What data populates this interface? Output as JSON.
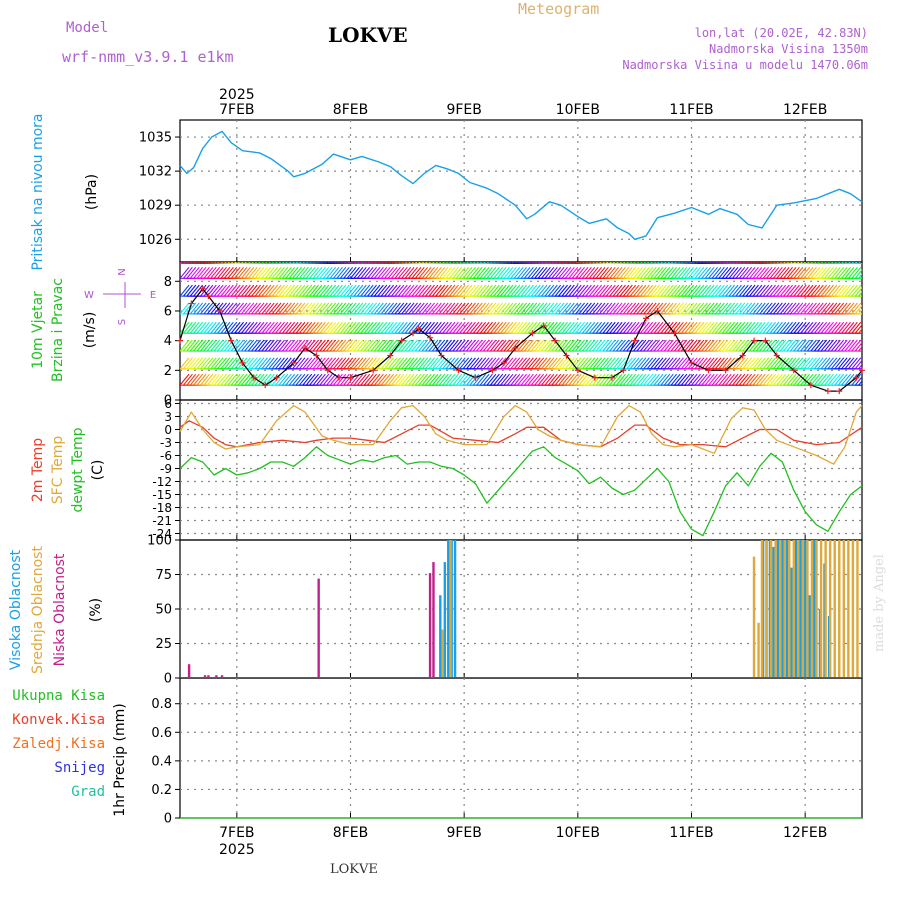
{
  "header": {
    "model_label": "Model",
    "model_name": "wrf-nmm_v3.9.1 e1km",
    "station": "LOKVE",
    "product": "Meteogram",
    "lonlat": "lon,lat (20.02E, 42.83N)",
    "elevation": "Nadmorska Visina 1350m",
    "model_elevation": "Nadmorska Visina u modelu 1470.06m",
    "footer_station": "LOKVE",
    "credit": "made by Angel"
  },
  "colors": {
    "pressure": "#1aa0e8",
    "temp2m": "#e8402a",
    "sfc_temp": "#e0a838",
    "dewpoint": "#22c022",
    "high_cloud": "#1aa0e8",
    "mid_cloud": "#e0a838",
    "low_cloud": "#c0208c",
    "total_precip": "#22c022",
    "conv_precip": "#e8402a",
    "frozen_precip": "#f07020",
    "snow": "#3030e0",
    "hail": "#20c0a0",
    "model_label": "#b060d0",
    "grid": "#888888"
  },
  "time_axis": {
    "year": "2025",
    "days": [
      "7FEB",
      "8FEB",
      "9FEB",
      "10FEB",
      "11FEB",
      "12FEB"
    ],
    "start_day": 6.5,
    "end_day": 12.5,
    "day_ticks": [
      6.5,
      7.0,
      8.0,
      9.0,
      10.0,
      11.0,
      12.0,
      12.5
    ]
  },
  "chart_data": [
    {
      "type": "line",
      "panel": "pressure",
      "ylabel_lines": [
        "Pritisak na nivou mora",
        "(hPa)"
      ],
      "ylim": [
        1024.0,
        1036.5
      ],
      "yticks": [
        1026,
        1029,
        1032,
        1035
      ],
      "grid": true,
      "series": [
        {
          "color": "#1aa0e8",
          "x": [
            6.5,
            6.56,
            6.62,
            6.7,
            6.78,
            6.87,
            6.95,
            7.05,
            7.2,
            7.3,
            7.45,
            7.5,
            7.6,
            7.75,
            7.85,
            8.0,
            8.1,
            8.25,
            8.35,
            8.45,
            8.55,
            8.65,
            8.75,
            8.85,
            8.95,
            9.05,
            9.2,
            9.3,
            9.45,
            9.55,
            9.62,
            9.75,
            9.85,
            10.0,
            10.1,
            10.25,
            10.35,
            10.45,
            10.5,
            10.6,
            10.7,
            10.85,
            11.0,
            11.15,
            11.25,
            11.4,
            11.5,
            11.62,
            11.75,
            11.9,
            12.1,
            12.3,
            12.4,
            12.5
          ],
          "values": [
            1032.5,
            1031.8,
            1032.3,
            1034.0,
            1035.0,
            1035.5,
            1034.5,
            1033.8,
            1033.6,
            1033.1,
            1032.0,
            1031.5,
            1031.8,
            1032.6,
            1033.5,
            1033.0,
            1033.3,
            1032.8,
            1032.4,
            1031.6,
            1030.9,
            1031.8,
            1032.5,
            1032.2,
            1031.8,
            1031.0,
            1030.5,
            1030.0,
            1029.0,
            1027.8,
            1028.2,
            1029.3,
            1029.0,
            1028.0,
            1027.4,
            1027.8,
            1027.0,
            1026.5,
            1026.0,
            1026.3,
            1027.9,
            1028.3,
            1028.8,
            1028.2,
            1028.7,
            1028.2,
            1027.3,
            1027.0,
            1029.0,
            1029.2,
            1029.6,
            1030.4,
            1030.0,
            1029.3
          ]
        }
      ]
    },
    {
      "type": "line",
      "panel": "wind",
      "ylabel_lines": [
        "10m Vjetar",
        "Brzina i Pravac",
        "(m/s)"
      ],
      "compass_labels": [
        "N",
        "W",
        "E",
        "S"
      ],
      "ylim": [
        0,
        9.3
      ],
      "yticks": [
        0,
        2,
        4,
        6,
        8
      ],
      "grid": true,
      "series": [
        {
          "name": "wind speed",
          "color": "#000000",
          "x": [
            6.5,
            6.6,
            6.7,
            6.75,
            6.85,
            6.95,
            7.05,
            7.15,
            7.25,
            7.35,
            7.5,
            7.6,
            7.7,
            7.8,
            7.9,
            8.0,
            8.2,
            8.35,
            8.45,
            8.55,
            8.6,
            8.7,
            8.8,
            8.95,
            9.1,
            9.25,
            9.35,
            9.45,
            9.6,
            9.7,
            9.8,
            9.9,
            10.0,
            10.15,
            10.3,
            10.4,
            10.5,
            10.6,
            10.7,
            10.85,
            11.0,
            11.15,
            11.3,
            11.45,
            11.55,
            11.65,
            11.75,
            11.9,
            12.05,
            12.2,
            12.3,
            12.45,
            12.5
          ],
          "values": [
            4.0,
            6.5,
            7.5,
            7.0,
            6.0,
            4.0,
            2.5,
            1.5,
            1.0,
            1.5,
            2.5,
            3.5,
            3.0,
            2.0,
            1.5,
            1.5,
            2.0,
            3.0,
            4.0,
            4.5,
            4.8,
            4.2,
            3.0,
            2.0,
            1.5,
            2.0,
            2.5,
            3.5,
            4.5,
            5.0,
            4.0,
            3.0,
            2.0,
            1.5,
            1.5,
            2.0,
            4.0,
            5.5,
            6.0,
            4.5,
            2.5,
            2.0,
            2.0,
            3.0,
            4.0,
            4.0,
            3.0,
            2.0,
            1.0,
            0.6,
            0.6,
            1.5,
            2.0
          ]
        }
      ]
    },
    {
      "type": "line",
      "panel": "temperature",
      "ylabel_lines": [
        "2m Temp",
        "SFC Temp",
        "dewpt Temp",
        "(C)"
      ],
      "ylim": [
        -25.5,
        6.8
      ],
      "yticks": [
        6,
        3,
        0,
        -3,
        -6,
        -9,
        -12,
        -15,
        -18,
        -21,
        -24
      ],
      "grid": true,
      "series": [
        {
          "name": "2m Temp",
          "color": "#e8402a",
          "x": [
            6.5,
            6.58,
            6.7,
            6.8,
            6.9,
            7.0,
            7.2,
            7.4,
            7.6,
            7.7,
            7.85,
            8.0,
            8.15,
            8.3,
            8.45,
            8.6,
            8.7,
            8.9,
            9.1,
            9.3,
            9.45,
            9.55,
            9.7,
            9.85,
            10.0,
            10.2,
            10.35,
            10.5,
            10.6,
            10.75,
            10.9,
            11.1,
            11.3,
            11.45,
            11.6,
            11.75,
            11.9,
            12.1,
            12.3,
            12.5
          ],
          "values": [
            0.5,
            2.0,
            0.5,
            -2.0,
            -3.5,
            -4.0,
            -3.0,
            -2.5,
            -3.0,
            -2.5,
            -2.0,
            -2.0,
            -2.5,
            -3.0,
            -1.0,
            1.0,
            1.0,
            -2.0,
            -2.5,
            -3.0,
            -1.0,
            0.5,
            0.5,
            -2.5,
            -3.5,
            -4.0,
            -2.0,
            1.0,
            1.0,
            -2.0,
            -3.5,
            -3.5,
            -4.0,
            -2.0,
            0.0,
            0.0,
            -2.5,
            -3.5,
            -3.0,
            0.5
          ]
        },
        {
          "name": "SFC Temp",
          "color": "#e0a838",
          "x": [
            6.5,
            6.6,
            6.7,
            6.8,
            6.9,
            7.0,
            7.2,
            7.35,
            7.5,
            7.6,
            7.75,
            7.85,
            8.0,
            8.2,
            8.35,
            8.45,
            8.55,
            8.65,
            8.75,
            8.85,
            9.0,
            9.2,
            9.35,
            9.45,
            9.55,
            9.65,
            9.75,
            9.85,
            10.0,
            10.2,
            10.35,
            10.45,
            10.55,
            10.65,
            10.75,
            10.85,
            11.0,
            11.2,
            11.35,
            11.45,
            11.55,
            11.65,
            11.75,
            11.9,
            12.1,
            12.25,
            12.35,
            12.45,
            12.5
          ],
          "values": [
            -0.5,
            4.0,
            0.0,
            -3.0,
            -4.5,
            -4.0,
            -3.5,
            2.0,
            5.5,
            4.0,
            -1.5,
            -2.5,
            -3.5,
            -3.5,
            2.0,
            5.0,
            5.5,
            3.0,
            -1.0,
            -2.5,
            -3.5,
            -3.5,
            3.0,
            5.5,
            4.0,
            0.0,
            -1.5,
            -2.5,
            -3.5,
            -4.0,
            3.0,
            5.5,
            4.0,
            -1.0,
            -3.5,
            -4.0,
            -3.5,
            -5.5,
            2.5,
            5.0,
            4.5,
            0.0,
            -2.5,
            -4.0,
            -6.0,
            -8.0,
            -4.0,
            4.0,
            5.5
          ]
        },
        {
          "name": "dewpt Temp",
          "color": "#22c022",
          "x": [
            6.5,
            6.6,
            6.7,
            6.8,
            6.9,
            7.0,
            7.1,
            7.2,
            7.3,
            7.4,
            7.5,
            7.6,
            7.7,
            7.8,
            7.9,
            8.0,
            8.1,
            8.2,
            8.3,
            8.4,
            8.5,
            8.6,
            8.7,
            8.8,
            8.9,
            9.0,
            9.1,
            9.2,
            9.3,
            9.4,
            9.5,
            9.6,
            9.7,
            9.8,
            9.9,
            10.0,
            10.1,
            10.2,
            10.3,
            10.4,
            10.5,
            10.6,
            10.7,
            10.8,
            10.9,
            11.0,
            11.1,
            11.2,
            11.3,
            11.4,
            11.5,
            11.6,
            11.7,
            11.8,
            11.9,
            12.0,
            12.1,
            12.2,
            12.3,
            12.4,
            12.5
          ],
          "values": [
            -9.0,
            -6.5,
            -7.5,
            -10.5,
            -9.0,
            -10.5,
            -10.0,
            -9.0,
            -7.5,
            -7.5,
            -8.5,
            -6.5,
            -4.0,
            -6.0,
            -7.0,
            -8.0,
            -7.0,
            -7.5,
            -6.5,
            -6.0,
            -8.0,
            -7.5,
            -7.5,
            -8.5,
            -9.0,
            -10.5,
            -12.5,
            -17.0,
            -14.0,
            -11.0,
            -8.0,
            -5.0,
            -4.0,
            -6.5,
            -8.0,
            -9.5,
            -12.5,
            -11.0,
            -13.5,
            -15.0,
            -14.0,
            -11.5,
            -9.0,
            -12.0,
            -19.0,
            -23.0,
            -24.5,
            -19.0,
            -13.0,
            -10.0,
            -13.0,
            -8.5,
            -5.5,
            -7.5,
            -14.0,
            -19.0,
            -22.0,
            -23.5,
            -19.0,
            -15.0,
            -13.0
          ]
        }
      ]
    },
    {
      "type": "bar",
      "panel": "cloud",
      "ylabel_lines": [
        "Visoka Oblacnost",
        "Srednja Oblacnost",
        "Niska Oblacnost",
        "(%)"
      ],
      "ylim": [
        0,
        100
      ],
      "yticks": [
        0,
        25,
        50,
        75,
        100
      ],
      "grid": true,
      "series": [
        {
          "name": "Visoka Oblacnost",
          "color": "#1aa0e8",
          "x": [
            8.79,
            8.81,
            8.83,
            8.86,
            8.89,
            8.92,
            11.63,
            11.66,
            11.69,
            11.72,
            11.76,
            11.8,
            11.84,
            11.88,
            11.92,
            11.96,
            12.0,
            12.04,
            12.08,
            12.13,
            12.17,
            12.21
          ],
          "values": [
            60,
            35,
            84,
            100,
            100,
            100,
            100,
            100,
            100,
            95,
            100,
            100,
            100,
            80,
            100,
            100,
            100,
            60,
            100,
            50,
            83,
            45
          ]
        },
        {
          "name": "Srednja Oblacnost",
          "color": "#e0a838",
          "x": [
            8.81,
            8.88,
            11.55,
            11.59,
            11.62,
            11.66,
            11.7,
            11.74,
            11.78,
            11.82,
            11.86,
            11.9,
            11.94,
            11.98,
            12.02,
            12.06,
            12.1,
            12.14,
            12.18,
            12.22,
            12.26,
            12.3,
            12.34,
            12.38,
            12.42,
            12.46
          ],
          "values": [
            35,
            100,
            88,
            40,
            100,
            100,
            100,
            100,
            100,
            100,
            100,
            100,
            100,
            100,
            100,
            100,
            100,
            100,
            100,
            100,
            100,
            100,
            100,
            100,
            100,
            100
          ]
        },
        {
          "name": "Niska Oblacnost",
          "color": "#c0208c",
          "x": [
            6.58,
            6.72,
            6.75,
            6.82,
            6.87,
            7.72,
            8.7,
            8.73
          ],
          "values": [
            10,
            2,
            2,
            2,
            2,
            72,
            76,
            84
          ]
        }
      ]
    },
    {
      "type": "line",
      "panel": "precipitation",
      "ylabel_lines": [
        "1hr Precip (mm)"
      ],
      "legend": [
        "Ukupna Kisa",
        "Konvek.Kisa",
        "Zaledj.Kisa",
        "Snijeg",
        "Grad"
      ],
      "ylim": [
        0,
        0.98
      ],
      "yticks": [
        0,
        0.2,
        0.4,
        0.6,
        0.8
      ],
      "grid": true,
      "series": [
        {
          "name": "Ukupna Kisa",
          "color": "#22c022",
          "x": [
            6.5,
            12.5
          ],
          "values": [
            0,
            0
          ]
        }
      ]
    }
  ]
}
